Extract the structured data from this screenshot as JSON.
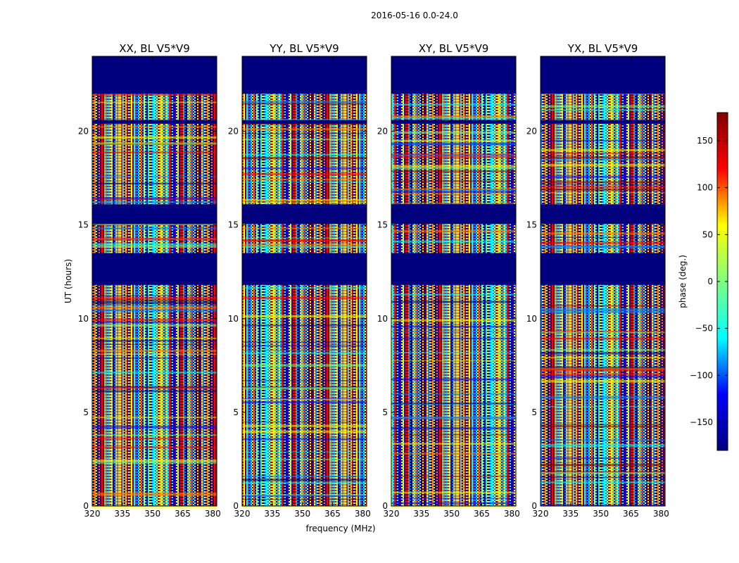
{
  "figure_title": "2016-05-16 0.0-24.0",
  "chart_data": [
    {
      "type": "heatmap",
      "title": "XX, BL V5*V9",
      "xlabel": "",
      "ylabel": "UT (hours)",
      "xlim": [
        320,
        382
      ],
      "ylim": [
        0,
        24
      ],
      "xticks": [
        320,
        335,
        350,
        365,
        380
      ],
      "yticks": [
        0,
        5,
        10,
        15,
        20
      ],
      "flagged_ut_ranges": [
        [
          11.8,
          13.5
        ],
        [
          15.05,
          16.1
        ],
        [
          20.4,
          20.6
        ],
        [
          22.0,
          24.0
        ]
      ]
    },
    {
      "type": "heatmap",
      "title": "YY, BL V5*V9",
      "xlabel": "frequency (MHz)",
      "ylabel": "",
      "xlim": [
        320,
        382
      ],
      "ylim": [
        0,
        24
      ],
      "xticks": [
        320,
        335,
        350,
        365,
        380
      ],
      "yticks": [
        0,
        5,
        10,
        15,
        20
      ],
      "flagged_ut_ranges": [
        [
          11.8,
          13.5
        ],
        [
          15.05,
          16.1
        ],
        [
          20.4,
          20.6
        ],
        [
          22.0,
          24.0
        ]
      ]
    },
    {
      "type": "heatmap",
      "title": "XY, BL V5*V9",
      "xlabel": "",
      "ylabel": "",
      "xlim": [
        320,
        382
      ],
      "ylim": [
        0,
        24
      ],
      "xticks": [
        320,
        335,
        350,
        365,
        380
      ],
      "yticks": [
        0,
        5,
        10,
        15,
        20
      ],
      "flagged_ut_ranges": [
        [
          11.8,
          13.5
        ],
        [
          15.05,
          16.1
        ],
        [
          20.4,
          20.6
        ],
        [
          22.0,
          24.0
        ]
      ]
    },
    {
      "type": "heatmap",
      "title": "YX, BL V5*V9",
      "xlabel": "",
      "ylabel": "",
      "xlim": [
        320,
        382
      ],
      "ylim": [
        0,
        24
      ],
      "xticks": [
        320,
        335,
        350,
        365,
        380
      ],
      "yticks": [
        0,
        5,
        10,
        15,
        20
      ],
      "flagged_ut_ranges": [
        [
          11.8,
          13.5
        ],
        [
          15.05,
          16.1
        ],
        [
          20.4,
          20.6
        ],
        [
          22.0,
          24.0
        ]
      ]
    }
  ],
  "colorbar": {
    "label": "phase (deg.)",
    "range": [
      -180,
      180
    ],
    "ticks": [
      150,
      100,
      50,
      0,
      -50,
      -100,
      -150
    ],
    "tick_labels": [
      "150",
      "100",
      "50",
      "0",
      "−50",
      "−100",
      "−150"
    ],
    "colormap": "jet",
    "colors": [
      "#00007f",
      "#0000ff",
      "#00ffff",
      "#7fff7f",
      "#ffff00",
      "#ff0000",
      "#7f0000"
    ]
  },
  "colors": {
    "flagged": "#00007f",
    "axis": "#000000"
  }
}
